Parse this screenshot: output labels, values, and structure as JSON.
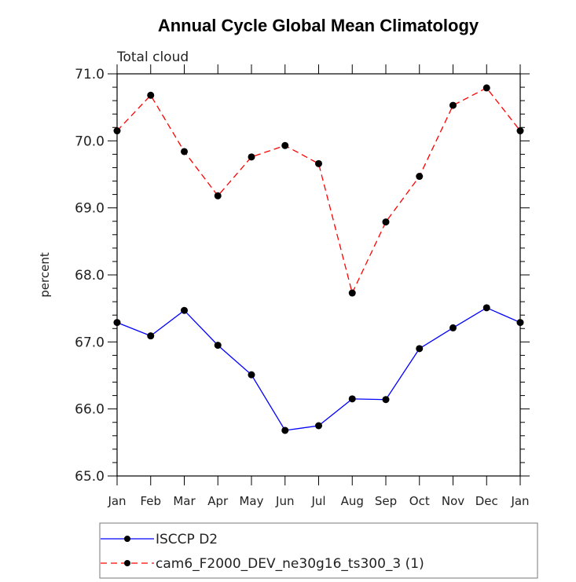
{
  "chart_data": {
    "type": "line",
    "title": "Annual Cycle Global Mean Climatology",
    "subtitle": "Total cloud",
    "xlabel": "",
    "ylabel": "percent",
    "categories": [
      "Jan",
      "Feb",
      "Mar",
      "Apr",
      "May",
      "Jun",
      "Jul",
      "Aug",
      "Sep",
      "Oct",
      "Nov",
      "Dec",
      "Jan"
    ],
    "ylim": [
      65.0,
      71.0
    ],
    "yticks": [
      "65.0",
      "66.0",
      "67.0",
      "68.0",
      "69.0",
      "70.0",
      "71.0"
    ],
    "grid": false,
    "legend_placement": "bottom",
    "series": [
      {
        "name": "ISCCP D2",
        "color": "#0000ff",
        "dash": "solid",
        "marker": "filled-circle",
        "values": [
          67.29,
          67.09,
          67.47,
          66.95,
          66.51,
          65.68,
          65.75,
          66.15,
          66.14,
          66.9,
          67.21,
          67.51,
          67.29
        ]
      },
      {
        "name": "cam6_F2000_DEV_ne30g16_ts300_3 (1)",
        "color": "#ff0000",
        "dash": "dashed",
        "marker": "filled-circle",
        "values": [
          70.15,
          70.68,
          69.84,
          69.18,
          69.76,
          69.93,
          69.66,
          67.73,
          68.79,
          69.47,
          70.53,
          70.79,
          70.15
        ]
      }
    ]
  }
}
